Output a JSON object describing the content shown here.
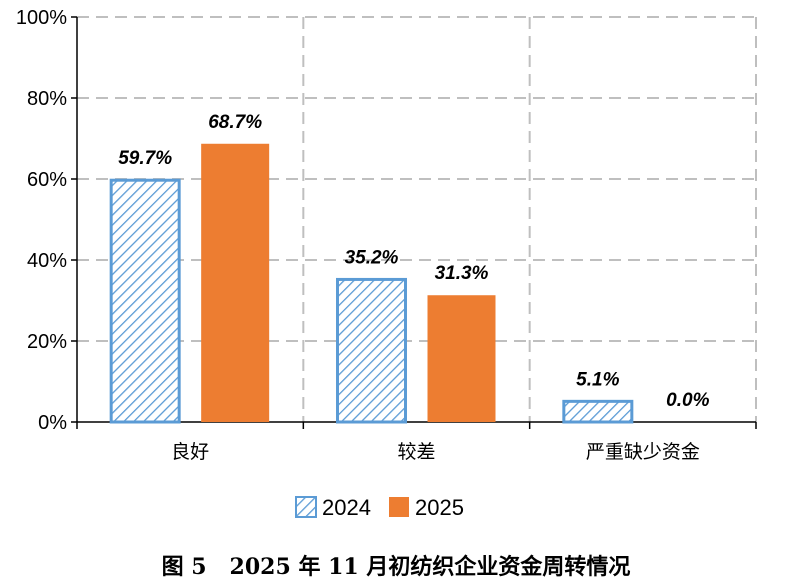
{
  "chart_data": {
    "type": "bar",
    "categories": [
      "良好",
      "较差",
      "严重缺少资金"
    ],
    "series": [
      {
        "name": "2024",
        "values": [
          59.7,
          35.2,
          5.1
        ],
        "labels": [
          "59.7%",
          "35.2%",
          "5.1%"
        ]
      },
      {
        "name": "2025",
        "values": [
          68.7,
          31.3,
          0.0
        ],
        "labels": [
          "68.7%",
          "31.3%",
          "0.0%"
        ]
      }
    ],
    "ylim": [
      0,
      100
    ],
    "yticks": [
      "0%",
      "20%",
      "40%",
      "60%",
      "80%",
      "100%"
    ],
    "grid": true,
    "legend_position": "bottom",
    "title": "图 5   2025 年 11 月初纺织企业资金周转情况"
  },
  "colors": {
    "series_2024_stroke": "#5b9bd5",
    "series_2025_fill": "#ed7d31",
    "grid": "#bfbfbf",
    "axis": "#000000"
  }
}
